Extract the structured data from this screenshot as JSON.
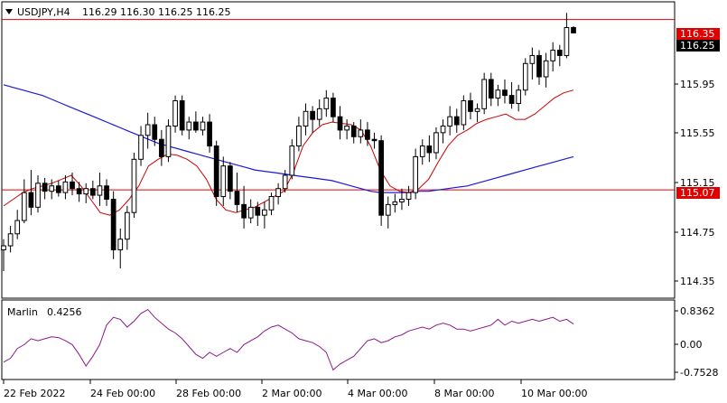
{
  "header": {
    "symbol_tf": "USDJPY,H4",
    "ohlc": "116.29 116.30 116.25 116.25"
  },
  "indicator": {
    "name": "Marlin",
    "value": "0.4256"
  },
  "price_axis": {
    "labels": [
      "116.35",
      "116.25",
      "115.95",
      "115.55",
      "115.15",
      "115.07",
      "114.75",
      "114.35"
    ]
  },
  "indicator_axis": {
    "labels": [
      "0.8362",
      "0.00",
      "-0.7528"
    ]
  },
  "time_axis": {
    "labels": [
      "22 Feb 2022",
      "24 Feb 00:00",
      "28 Feb 00:00",
      "2 Mar 00:00",
      "4 Mar 00:00",
      "8 Mar 00:00",
      "10 Mar 00:00"
    ]
  },
  "levels": [
    {
      "price": 116.35,
      "label": "116.35"
    },
    {
      "price": 115.07,
      "label": "115.07"
    }
  ],
  "colors": {
    "level_line": "#e00000",
    "level_tag": "#e00000",
    "ma_fast": "#cc0000",
    "ma_slow": "#1a1ad6",
    "oscillator": "#8b1a8b",
    "candle_up": "#ffffff",
    "candle_down": "#000000"
  },
  "chart_data": {
    "type": "candlestick",
    "y_range": [
      114.27,
      116.47
    ],
    "osc_range": [
      -0.95,
      1.0
    ],
    "candles": [
      [
        114.62,
        114.7,
        114.46,
        114.65
      ],
      [
        114.65,
        114.8,
        114.6,
        114.74
      ],
      [
        114.74,
        114.92,
        114.7,
        114.84
      ],
      [
        114.84,
        115.15,
        114.82,
        115.05
      ],
      [
        115.05,
        115.22,
        114.88,
        114.94
      ],
      [
        114.94,
        115.18,
        114.9,
        115.12
      ],
      [
        115.12,
        115.16,
        115.0,
        115.06
      ],
      [
        115.06,
        115.15,
        115.0,
        115.1
      ],
      [
        115.1,
        115.14,
        115.02,
        115.05
      ],
      [
        115.05,
        115.18,
        115.0,
        115.13
      ],
      [
        115.13,
        115.2,
        115.03,
        115.08
      ],
      [
        115.08,
        115.13,
        114.98,
        115.04
      ],
      [
        115.04,
        115.12,
        114.97,
        115.08
      ],
      [
        115.08,
        115.14,
        115.0,
        115.03
      ],
      [
        115.03,
        115.2,
        114.95,
        115.1
      ],
      [
        115.1,
        115.15,
        114.95,
        115.0
      ],
      [
        115.0,
        115.06,
        114.55,
        114.62
      ],
      [
        114.62,
        114.78,
        114.48,
        114.7
      ],
      [
        114.7,
        114.95,
        114.62,
        114.9
      ],
      [
        114.9,
        115.35,
        114.86,
        115.3
      ],
      [
        115.3,
        115.55,
        115.25,
        115.48
      ],
      [
        115.48,
        115.65,
        115.38,
        115.56
      ],
      [
        115.56,
        115.62,
        115.4,
        115.45
      ],
      [
        115.45,
        115.52,
        115.25,
        115.32
      ],
      [
        115.32,
        115.6,
        115.28,
        115.55
      ],
      [
        115.55,
        115.78,
        115.5,
        115.74
      ],
      [
        115.74,
        115.78,
        115.48,
        115.52
      ],
      [
        115.52,
        115.62,
        115.45,
        115.58
      ],
      [
        115.58,
        115.66,
        115.5,
        115.52
      ],
      [
        115.52,
        115.62,
        115.48,
        115.58
      ],
      [
        115.58,
        115.64,
        115.35,
        115.4
      ],
      [
        115.4,
        115.44,
        114.95,
        115.02
      ],
      [
        115.02,
        115.32,
        114.95,
        115.25
      ],
      [
        115.25,
        115.28,
        115.0,
        115.06
      ],
      [
        115.06,
        115.2,
        114.9,
        114.96
      ],
      [
        114.96,
        115.1,
        114.78,
        114.86
      ],
      [
        114.86,
        115.0,
        114.82,
        114.94
      ],
      [
        114.94,
        114.98,
        114.8,
        114.88
      ],
      [
        114.88,
        114.98,
        114.78,
        114.92
      ],
      [
        114.92,
        115.05,
        114.88,
        115.02
      ],
      [
        115.02,
        115.12,
        114.96,
        115.08
      ],
      [
        115.08,
        115.22,
        115.05,
        115.18
      ],
      [
        115.18,
        115.45,
        115.15,
        115.4
      ],
      [
        115.4,
        115.62,
        115.36,
        115.55
      ],
      [
        115.55,
        115.72,
        115.48,
        115.66
      ],
      [
        115.66,
        115.7,
        115.5,
        115.6
      ],
      [
        115.6,
        115.75,
        115.55,
        115.68
      ],
      [
        115.68,
        115.82,
        115.62,
        115.76
      ],
      [
        115.76,
        115.8,
        115.58,
        115.62
      ],
      [
        115.62,
        115.7,
        115.45,
        115.52
      ],
      [
        115.52,
        115.6,
        115.45,
        115.55
      ],
      [
        115.55,
        115.58,
        115.42,
        115.47
      ],
      [
        115.47,
        115.6,
        115.42,
        115.52
      ],
      [
        115.52,
        115.58,
        115.4,
        115.45
      ],
      [
        115.45,
        115.5,
        115.38,
        115.44
      ],
      [
        115.44,
        115.48,
        114.8,
        114.88
      ],
      [
        114.88,
        115.02,
        114.78,
        114.96
      ],
      [
        114.96,
        115.04,
        114.9,
        114.98
      ],
      [
        114.98,
        115.08,
        114.92,
        115.0
      ],
      [
        115.0,
        115.1,
        114.95,
        115.05
      ],
      [
        115.05,
        115.38,
        115.0,
        115.32
      ],
      [
        115.32,
        115.45,
        115.26,
        115.4
      ],
      [
        115.4,
        115.48,
        115.28,
        115.35
      ],
      [
        115.35,
        115.54,
        115.3,
        115.5
      ],
      [
        115.5,
        115.6,
        115.42,
        115.55
      ],
      [
        115.55,
        115.7,
        115.48,
        115.62
      ],
      [
        115.62,
        115.68,
        115.5,
        115.56
      ],
      [
        115.56,
        115.78,
        115.52,
        115.74
      ],
      [
        115.74,
        115.8,
        115.6,
        115.66
      ],
      [
        115.66,
        115.72,
        115.58,
        115.68
      ],
      [
        115.68,
        115.95,
        115.64,
        115.9
      ],
      [
        115.9,
        115.95,
        115.7,
        115.76
      ],
      [
        115.76,
        115.86,
        115.7,
        115.82
      ],
      [
        115.82,
        115.9,
        115.72,
        115.78
      ],
      [
        115.78,
        115.88,
        115.68,
        115.72
      ],
      [
        115.72,
        115.86,
        115.66,
        115.82
      ],
      [
        115.82,
        116.06,
        115.78,
        116.02
      ],
      [
        116.02,
        116.14,
        115.9,
        116.08
      ],
      [
        116.08,
        116.12,
        115.86,
        115.92
      ],
      [
        115.92,
        116.1,
        115.84,
        116.04
      ],
      [
        116.04,
        116.18,
        115.96,
        116.12
      ],
      [
        116.12,
        116.16,
        116.0,
        116.08
      ],
      [
        116.08,
        116.4,
        116.06,
        116.29
      ],
      [
        116.29,
        116.3,
        116.25,
        116.25
      ]
    ],
    "ma_fast": [
      114.95,
      115.0,
      115.05,
      115.08,
      115.1,
      115.12,
      115.15,
      115.18,
      115.1,
      115.0,
      114.9,
      114.88,
      114.92,
      115.0,
      115.1,
      115.25,
      115.3,
      115.34,
      115.33,
      115.3,
      115.25,
      115.15,
      115.0,
      114.92,
      114.9,
      114.92,
      114.94,
      114.98,
      115.02,
      115.06,
      115.2,
      115.4,
      115.5,
      115.56,
      115.58,
      115.57,
      115.56,
      115.52,
      115.4,
      115.22,
      115.1,
      115.06,
      115.05,
      115.08,
      115.15,
      115.28,
      115.4,
      115.48,
      115.52,
      115.57,
      115.6,
      115.62,
      115.64,
      115.6,
      115.6,
      115.64,
      115.7,
      115.76,
      115.8,
      115.82
    ],
    "ma_slow": [
      115.86,
      115.84,
      115.82,
      115.8,
      115.78,
      115.75,
      115.72,
      115.69,
      115.66,
      115.63,
      115.6,
      115.57,
      115.54,
      115.51,
      115.48,
      115.45,
      115.42,
      115.4,
      115.38,
      115.36,
      115.34,
      115.32,
      115.3,
      115.28,
      115.26,
      115.24,
      115.22,
      115.21,
      115.2,
      115.19,
      115.18,
      115.17,
      115.16,
      115.15,
      115.14,
      115.12,
      115.1,
      115.08,
      115.06,
      115.05,
      115.05,
      115.05,
      115.05,
      115.06,
      115.06,
      115.07,
      115.08,
      115.09,
      115.1,
      115.12,
      115.14,
      115.16,
      115.18,
      115.2,
      115.22,
      115.24,
      115.26,
      115.28,
      115.3,
      115.32
    ],
    "oscillator": [
      -0.55,
      -0.45,
      -0.2,
      -0.1,
      0.05,
      0.0,
      0.05,
      0.1,
      0.08,
      0.0,
      -0.1,
      -0.35,
      -0.65,
      -0.4,
      -0.1,
      0.4,
      0.6,
      0.55,
      0.35,
      0.5,
      0.7,
      0.8,
      0.6,
      0.45,
      0.3,
      0.2,
      0.05,
      -0.15,
      -0.35,
      -0.45,
      -0.3,
      -0.4,
      -0.3,
      -0.2,
      -0.3,
      -0.1,
      0.0,
      0.1,
      0.25,
      0.35,
      0.4,
      0.3,
      0.2,
      0.05,
      0.0,
      -0.05,
      -0.15,
      -0.3,
      -0.75,
      -0.6,
      -0.5,
      -0.4,
      -0.2,
      0.0,
      0.05,
      -0.05,
      0.0,
      0.1,
      0.15,
      0.25,
      0.3,
      0.35,
      0.3,
      0.4,
      0.45,
      0.4,
      0.3,
      0.3,
      0.25,
      0.3,
      0.35,
      0.4,
      0.55,
      0.4,
      0.5,
      0.45,
      0.5,
      0.55,
      0.5,
      0.55,
      0.6,
      0.5,
      0.55,
      0.43
    ]
  }
}
